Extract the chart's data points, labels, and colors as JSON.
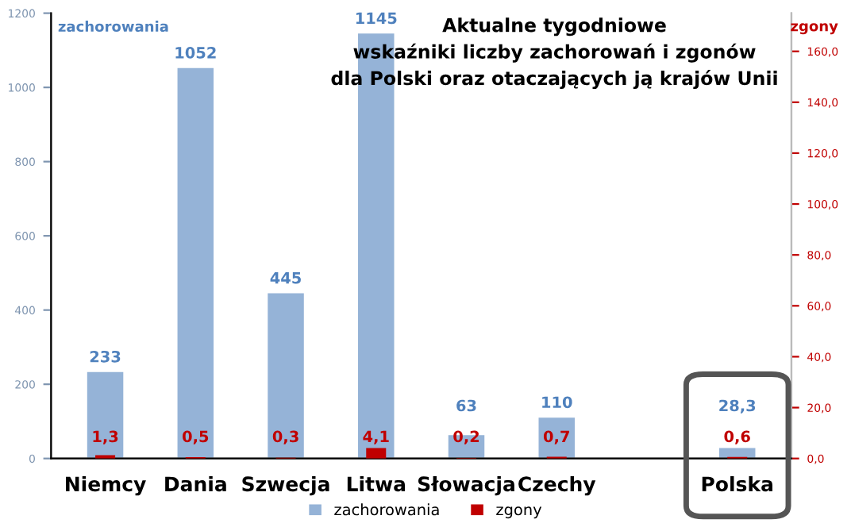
{
  "chart_data": {
    "type": "bar",
    "title": "Aktualne tygodniowe\nwskaźniki liczby zachorowań i zgonów\ndla Polski oraz otaczających ją krajów Unii",
    "ylabel": "zachorowania",
    "y2label": "zgony",
    "categories": [
      "Niemcy",
      "Dania",
      "Szwecja",
      "Litwa",
      "Słowacja",
      "Czechy",
      null,
      "Polska"
    ],
    "series": [
      {
        "name": "zachorowania",
        "color": "#95b3d7",
        "values": [
          233,
          1052,
          445,
          1145,
          63,
          110,
          null,
          28.3
        ],
        "value_labels": [
          "233",
          "1052",
          "445",
          "1145",
          "63",
          "110",
          null,
          "28,3"
        ]
      },
      {
        "name": "zgony",
        "color": "#c00000",
        "axis": "y2",
        "values": [
          1.3,
          0.5,
          0.3,
          4.1,
          0.2,
          0.7,
          null,
          0.6
        ],
        "value_labels": [
          "1,3",
          "0,5",
          "0,3",
          "4,1",
          "0,2",
          "0,7",
          null,
          "0,6"
        ]
      }
    ],
    "ylim": [
      0,
      1200
    ],
    "yticks": [
      0,
      200,
      400,
      600,
      800,
      1000,
      1200
    ],
    "y2lim": [
      0,
      175
    ],
    "y2ticks": [
      {
        "value": 0,
        "label": "0,0"
      },
      {
        "value": 20,
        "label": "20,0"
      },
      {
        "value": 40,
        "label": "40,0"
      },
      {
        "value": 60,
        "label": "60,0"
      },
      {
        "value": 80,
        "label": "80,0"
      },
      {
        "value": 100,
        "label": "100,0"
      },
      {
        "value": 120,
        "label": "120,0"
      },
      {
        "value": 140,
        "label": "140,0"
      },
      {
        "value": 160,
        "label": "160,0"
      }
    ],
    "grid": false,
    "legend": "bottom"
  }
}
